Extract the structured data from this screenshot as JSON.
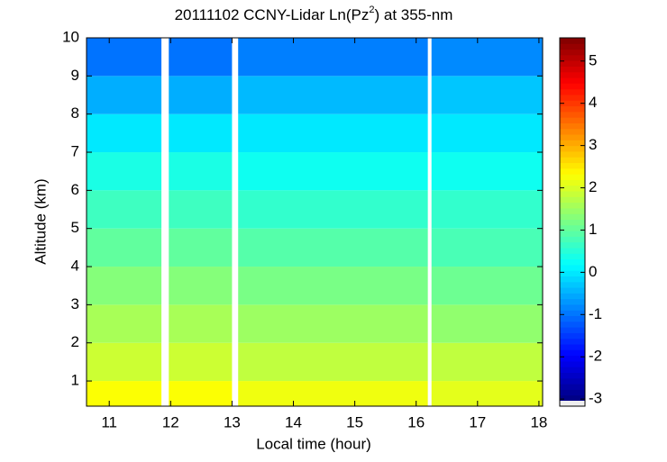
{
  "chart_data": {
    "type": "heatmap",
    "title": "20111102 CCNY-Lidar Ln(Pz",
    "title_sup": "2",
    "title_end": ") at 355-nm",
    "xlabel": "Local time (hour)",
    "ylabel": "Altitude (km)",
    "xlim": [
      10.63,
      18.06
    ],
    "ylim": [
      0.34,
      10
    ],
    "xticks": [
      11,
      12,
      13,
      14,
      15,
      16,
      17,
      18
    ],
    "yticks": [
      1,
      2,
      3,
      4,
      5,
      6,
      7,
      8,
      9,
      10
    ],
    "x_segments": [
      [
        10.63,
        11.85
      ],
      [
        11.97,
        13.0
      ],
      [
        13.1,
        16.19
      ],
      [
        16.25,
        18.06
      ]
    ],
    "ybins": [
      0.34,
      1,
      2,
      3,
      4,
      5,
      6,
      7,
      8,
      9,
      10
    ],
    "z": [
      [
        2.3,
        2.3,
        2.2,
        2.1
      ],
      [
        1.9,
        1.9,
        1.8,
        1.8
      ],
      [
        1.6,
        1.6,
        1.5,
        1.4
      ],
      [
        1.3,
        1.3,
        1.2,
        1.1
      ],
      [
        1.0,
        1.0,
        0.9,
        0.8
      ],
      [
        0.7,
        0.7,
        0.6,
        0.6
      ],
      [
        0.4,
        0.4,
        0.3,
        0.3
      ],
      [
        0.0,
        0.0,
        0.0,
        0.0
      ],
      [
        -0.5,
        -0.5,
        -0.4,
        -0.3
      ],
      [
        -1.0,
        -1.0,
        -0.9,
        -0.8
      ]
    ],
    "clim": [
      -3.04,
      5.55
    ],
    "cticks": [
      -3,
      -2,
      -1,
      0,
      1,
      2,
      3,
      4,
      5
    ],
    "colormap": "jet"
  }
}
